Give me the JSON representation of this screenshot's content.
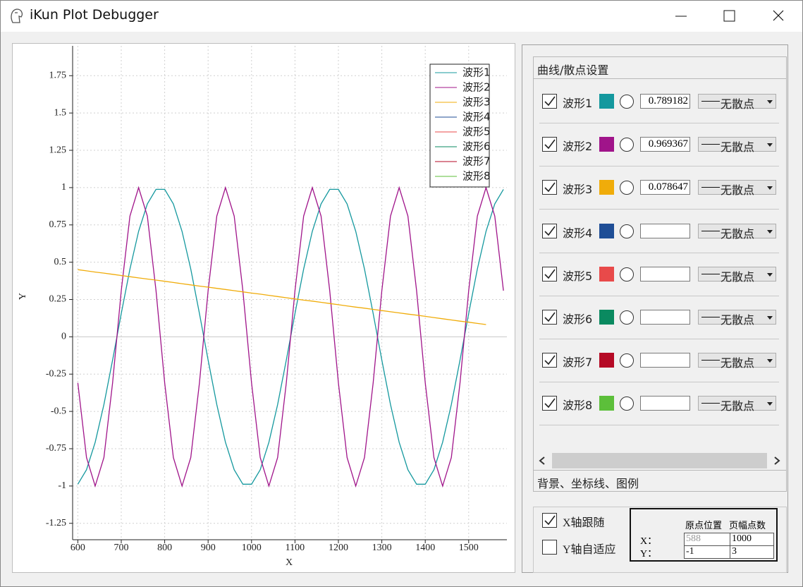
{
  "window": {
    "title": "iKun Plot Debugger"
  },
  "chart_data": {
    "type": "line",
    "xlabel": "X",
    "ylabel": "Y",
    "x": [
      600,
      620,
      640,
      660,
      680,
      700,
      720,
      740,
      760,
      780,
      800,
      820,
      840,
      860,
      880,
      900,
      920,
      940,
      960,
      980,
      1000,
      1020,
      1040,
      1060,
      1080,
      1100,
      1120,
      1140,
      1160,
      1180,
      1200,
      1220,
      1240,
      1260,
      1280,
      1300,
      1320,
      1340,
      1360,
      1380,
      1400,
      1420,
      1440,
      1460,
      1480,
      1500,
      1520,
      1540,
      1560,
      1580
    ],
    "series": [
      {
        "name": "波形1",
        "color": "#14989e",
        "values": [
          -0.988,
          -0.891,
          -0.707,
          -0.454,
          -0.156,
          0.156,
          0.454,
          0.707,
          0.891,
          0.988,
          0.988,
          0.891,
          0.707,
          0.454,
          0.156,
          -0.156,
          -0.454,
          -0.707,
          -0.891,
          -0.988,
          -0.988,
          -0.891,
          -0.707,
          -0.454,
          -0.156,
          0.156,
          0.454,
          0.707,
          0.891,
          0.988,
          0.988,
          0.891,
          0.707,
          0.454,
          0.156,
          -0.156,
          -0.454,
          -0.707,
          -0.891,
          -0.988,
          -0.988,
          -0.891,
          -0.707,
          -0.454,
          -0.156,
          0.156,
          0.454,
          0.707,
          0.891,
          0.988
        ]
      },
      {
        "name": "波形2",
        "color": "#a0148a",
        "values": [
          -0.309,
          -0.809,
          -1,
          -0.809,
          -0.309,
          0.309,
          0.809,
          1,
          0.809,
          0.309,
          -0.309,
          -0.809,
          -1,
          -0.809,
          -0.309,
          0.309,
          0.809,
          1,
          0.809,
          0.309,
          -0.309,
          -0.809,
          -1,
          -0.809,
          -0.309,
          0.309,
          0.809,
          1,
          0.809,
          0.309,
          -0.309,
          -0.809,
          -1,
          -0.809,
          -0.309,
          0.309,
          0.809,
          1,
          0.809,
          0.309,
          -0.309,
          -0.809,
          -1,
          -0.809,
          -0.309,
          0.309,
          0.809,
          1,
          0.809,
          0.309
        ]
      },
      {
        "name": "波形3",
        "color": "#f0ac0a",
        "values": [
          0.45,
          0.442,
          0.434,
          0.427,
          0.419,
          0.411,
          0.403,
          0.395,
          0.387,
          0.38,
          0.372,
          0.364,
          0.356,
          0.348,
          0.34,
          0.333,
          0.325,
          0.317,
          0.309,
          0.301,
          0.293,
          0.286,
          0.278,
          0.27,
          0.262,
          0.254,
          0.246,
          0.239,
          0.231,
          0.223,
          0.215,
          0.207,
          0.199,
          0.192,
          0.184,
          0.176,
          0.168,
          0.16,
          0.152,
          0.145,
          0.137,
          0.129,
          0.121,
          0.113,
          0.105,
          0.098,
          0.09,
          0.082,
          null,
          null
        ]
      },
      {
        "name": "波形4",
        "color": "#1f4e96"
      },
      {
        "name": "波形5",
        "color": "#e84a4a"
      },
      {
        "name": "波形6",
        "color": "#0a8a60"
      },
      {
        "name": "波形7",
        "color": "#b50a25"
      },
      {
        "name": "波形8",
        "color": "#5cbf3a"
      }
    ],
    "xlim": [
      588,
      1588
    ],
    "ylim": [
      -1.36,
      1.95
    ],
    "xticks": [
      600,
      700,
      800,
      900,
      1000,
      1100,
      1200,
      1300,
      1400,
      1500
    ],
    "yticks": [
      -1.25,
      -1,
      -0.75,
      -0.5,
      -0.25,
      0,
      0.25,
      0.5,
      0.75,
      1,
      1.25,
      1.5,
      1.75
    ],
    "grid": true,
    "legend": "top-right"
  },
  "curve_panel": {
    "title": "曲线/散点设置",
    "rows": [
      {
        "checked": true,
        "value": "0.789182",
        "scatter": "无散点"
      },
      {
        "checked": true,
        "value": "0.969367",
        "scatter": "无散点"
      },
      {
        "checked": true,
        "value": "0.078647",
        "scatter": "无散点"
      },
      {
        "checked": true,
        "scatter": "无散点"
      },
      {
        "checked": true,
        "scatter": "无散点"
      },
      {
        "checked": true,
        "scatter": "无散点"
      },
      {
        "checked": true,
        "scatter": "无散点"
      },
      {
        "checked": true,
        "scatter": "无散点"
      }
    ]
  },
  "tab": "背景、坐标线、图例",
  "axis_panel": {
    "x_follow": {
      "label": "X轴跟随",
      "checked": true
    },
    "y_auto": {
      "label": "Y轴自适应",
      "checked": false
    },
    "table": {
      "headers": [
        "原点位置",
        "页幅点数"
      ],
      "rows": [
        {
          "label": "X：",
          "origin": 588,
          "page": 1000
        },
        {
          "label": "Y：",
          "origin": -1,
          "page": 3
        }
      ]
    }
  }
}
